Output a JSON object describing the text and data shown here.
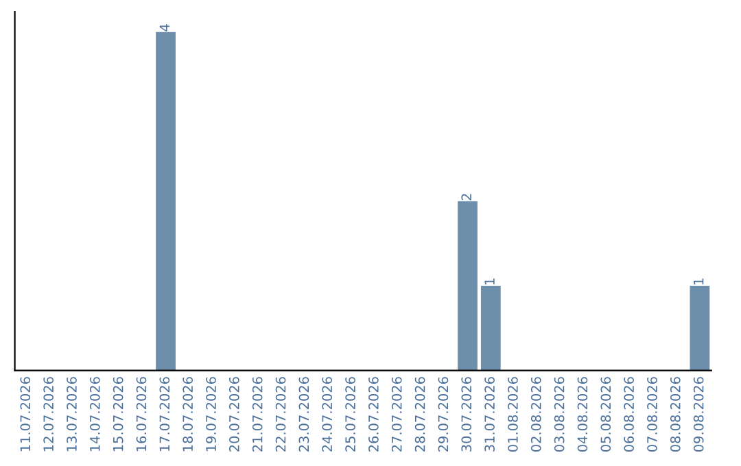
{
  "chart_data": {
    "type": "bar",
    "categories": [
      "11.07.2026",
      "12.07.2026",
      "13.07.2026",
      "14.07.2026",
      "15.07.2026",
      "16.07.2026",
      "17.07.2026",
      "18.07.2026",
      "19.07.2026",
      "20.07.2026",
      "21.07.2026",
      "22.07.2026",
      "23.07.2026",
      "24.07.2026",
      "25.07.2026",
      "26.07.2026",
      "27.07.2026",
      "28.07.2026",
      "29.07.2026",
      "30.07.2026",
      "31.07.2026",
      "01.08.2026",
      "02.08.2026",
      "03.08.2026",
      "04.08.2026",
      "05.08.2026",
      "06.08.2026",
      "07.08.2026",
      "08.08.2026",
      "09.08.2026"
    ],
    "values": [
      0,
      0,
      0,
      0,
      0,
      0,
      4,
      0,
      0,
      0,
      0,
      0,
      0,
      0,
      0,
      0,
      0,
      0,
      0,
      2,
      1,
      0,
      0,
      0,
      0,
      0,
      0,
      0,
      0,
      1
    ],
    "value_labels": [
      null,
      null,
      null,
      null,
      null,
      null,
      "4",
      null,
      null,
      null,
      null,
      null,
      null,
      null,
      null,
      null,
      null,
      null,
      null,
      "2",
      "1",
      null,
      null,
      null,
      null,
      null,
      null,
      null,
      null,
      "1"
    ],
    "color": "#6d8fac",
    "grid": false,
    "legend": false
  }
}
